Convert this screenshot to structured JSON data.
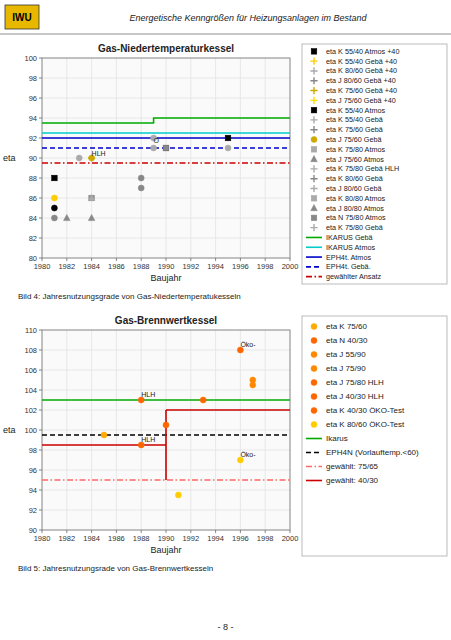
{
  "title": "Energetische Kenngrößen für Heizungsanlagen im Bestand",
  "annotations": [
    "IWU",
    "- 8 -"
  ],
  "chart_data": [
    {
      "type": "scatter",
      "title": "Gas-Niedertemperaturkessel",
      "subtitle": "Bild 4: Jahresnutzungsgrade von Gas-Niedertemperatukesseln",
      "x_label": "Baujahr",
      "y_label": "eta",
      "xlim": [
        1980,
        2000
      ],
      "ylim": [
        80,
        100
      ],
      "xticks": [
        1980,
        1982,
        1984,
        1986,
        1988,
        1990,
        1992,
        1994,
        1996,
        1998,
        2000
      ],
      "yticks": [
        80,
        82,
        84,
        86,
        88,
        90,
        92,
        94,
        96,
        98,
        100
      ],
      "grid": true,
      "legend": "right",
      "series": [
        {
          "name": "eta K 55/40 Atmos +40",
          "type": "scatter",
          "color": "#000000",
          "marker": "square",
          "x": [],
          "values": []
        },
        {
          "name": "eta K 55/40 Gebä +40",
          "type": "scatter",
          "color": "#ffcc00",
          "marker": "plus",
          "x": [],
          "values": []
        },
        {
          "name": "eta K 80/60 Gebä +40",
          "type": "scatter",
          "color": "#aaaaaa",
          "marker": "plus",
          "x": [],
          "values": []
        },
        {
          "name": "eta J 80/60 Gebä +40",
          "type": "scatter",
          "color": "#888888",
          "marker": "plus",
          "x": [],
          "values": []
        },
        {
          "name": "eta K 75/60 Gebä +40",
          "type": "scatter",
          "color": "#ccaa00",
          "marker": "plus",
          "x": [],
          "values": []
        },
        {
          "name": "eta J 75/60 Gebä +40",
          "type": "scatter",
          "color": "#ffdd00",
          "marker": "plus",
          "x": [],
          "values": []
        },
        {
          "name": "eta K 55/40 Atmos",
          "type": "scatter",
          "color": "#000000",
          "marker": "square",
          "x": [],
          "values": []
        },
        {
          "name": "eta K 55/40 Gebä",
          "type": "scatter",
          "color": "#aaaaaa",
          "marker": "plus",
          "x": [],
          "values": []
        },
        {
          "name": "eta K 75/60 Gebä",
          "type": "scatter",
          "color": "#888888",
          "marker": "plus",
          "x": [],
          "values": []
        },
        {
          "name": "eta J 75/60 Gebä",
          "type": "scatter",
          "color": "#ccaa00",
          "marker": "circle",
          "x": [],
          "values": []
        },
        {
          "name": "eta K 75/80 Atmos",
          "type": "scatter",
          "color": "#aaaaaa",
          "marker": "square",
          "x": [],
          "values": []
        },
        {
          "name": "eta J 75/60 Atmos",
          "type": "scatter",
          "color": "#888888",
          "marker": "triangle",
          "x": [],
          "values": []
        },
        {
          "name": "eta K 75/80 Gebä HLH",
          "type": "scatter",
          "color": "#aaaaaa",
          "marker": "plus",
          "x": [],
          "values": []
        },
        {
          "name": "eta K 80/60 Gebä",
          "type": "scatter",
          "color": "#888888",
          "marker": "plus",
          "x": [],
          "values": []
        },
        {
          "name": "eta J 80/60 Gebä",
          "type": "scatter",
          "color": "#aaaaaa",
          "marker": "plus",
          "x": [],
          "values": []
        },
        {
          "name": "eta K 80/80 Atmos",
          "type": "scatter",
          "color": "#aaaaaa",
          "marker": "square",
          "x": [],
          "values": []
        },
        {
          "name": "eta J 80/80 Atmos",
          "type": "scatter",
          "color": "#888888",
          "marker": "triangle",
          "x": [],
          "values": []
        },
        {
          "name": "eta N 75/80 Atmos",
          "type": "scatter",
          "color": "#888888",
          "marker": "square",
          "x": [],
          "values": []
        },
        {
          "name": "eta K 75/80 Gebä",
          "type": "scatter",
          "color": "#aaaaaa",
          "marker": "plus",
          "x": [],
          "values": []
        },
        {
          "name": "IKARUS Gebä",
          "type": "line",
          "color": "#00aa00",
          "line_style": "solid",
          "x": [
            1980,
            1989,
            1989,
            2000
          ],
          "values": [
            93.5,
            93.5,
            94,
            94
          ]
        },
        {
          "name": "IKARUS Atmos",
          "type": "line",
          "color": "#00cccc",
          "line_style": "solid",
          "x": [
            1980,
            1989,
            1989,
            2000
          ],
          "values": [
            92.5,
            92.5,
            92.5,
            92.5
          ]
        },
        {
          "name": "EPH4t. Atmos",
          "type": "line",
          "color": "#0000cc",
          "line_style": "solid",
          "x": [
            1980,
            2000
          ],
          "values": [
            92,
            92
          ]
        },
        {
          "name": "EPH4t. Gebä.",
          "type": "line",
          "color": "#0000cc",
          "line_style": "dashed",
          "x": [
            1980,
            2000
          ],
          "values": [
            91,
            91
          ]
        },
        {
          "name": "gewählter Ansatz",
          "type": "line",
          "color": "#cc0000",
          "line_style": "dashdot",
          "x": [
            1980,
            2000
          ],
          "values": [
            89.5,
            89.5
          ]
        },
        {
          "type": "scatter",
          "color": "#000000",
          "marker": "square",
          "x": [
            1981
          ],
          "values": [
            88
          ]
        },
        {
          "type": "scatter",
          "color": "#ffcc00",
          "marker": "circle",
          "x": [
            1981
          ],
          "values": [
            86
          ]
        },
        {
          "type": "scatter",
          "color": "#000000",
          "marker": "circle",
          "x": [
            1981
          ],
          "values": [
            85
          ]
        },
        {
          "type": "scatter",
          "color": "#888888",
          "marker": "circle",
          "x": [
            1981
          ],
          "values": [
            84
          ]
        },
        {
          "type": "scatter",
          "color": "#888888",
          "marker": "triangle",
          "x": [
            1982
          ],
          "values": [
            84
          ]
        },
        {
          "type": "scatter",
          "color": "#aaaaaa",
          "marker": "circle",
          "x": [
            1983
          ],
          "values": [
            90
          ]
        },
        {
          "type": "scatter",
          "color": "#ccaa00",
          "marker": "plus",
          "x": [
            1984
          ],
          "values": [
            90
          ]
        },
        {
          "type": "scatter",
          "color": "#888888",
          "marker": "square",
          "x": [
            1984
          ],
          "values": [
            86
          ]
        },
        {
          "type": "scatter",
          "color": "#aaaaaa",
          "marker": "triangle",
          "x": [
            1984
          ],
          "values": [
            86
          ]
        },
        {
          "type": "scatter",
          "color": "#888888",
          "marker": "triangle",
          "x": [
            1984
          ],
          "values": [
            84
          ]
        },
        {
          "type": "scatter",
          "color": "#ccaa00",
          "marker": "circle",
          "x": [
            1984
          ],
          "values": [
            90
          ]
        },
        {
          "type": "scatter",
          "color": "#888888",
          "marker": "circle",
          "x": [
            1988
          ],
          "values": [
            88
          ]
        },
        {
          "type": "scatter",
          "color": "#888888",
          "marker": "circle",
          "x": [
            1988
          ],
          "values": [
            87
          ]
        },
        {
          "type": "scatter",
          "color": "#aaaaaa",
          "marker": "circle",
          "x": [
            1989
          ],
          "values": [
            92
          ]
        },
        {
          "type": "scatter",
          "color": "#aaaaaa",
          "marker": "circle",
          "x": [
            1989
          ],
          "values": [
            91
          ]
        },
        {
          "type": "scatter",
          "color": "#000000",
          "marker": "square",
          "x": [
            1990
          ],
          "values": [
            91
          ]
        },
        {
          "type": "scatter",
          "color": "#888888",
          "marker": "square",
          "x": [
            1990
          ],
          "values": [
            91
          ]
        },
        {
          "type": "scatter",
          "color": "#000000",
          "marker": "square",
          "x": [
            1995
          ],
          "values": [
            92
          ]
        },
        {
          "type": "scatter",
          "color": "#aaaaaa",
          "marker": "circle",
          "x": [
            1995
          ],
          "values": [
            91
          ]
        }
      ],
      "annotations": [
        {
          "x": 1984,
          "y": 90.2,
          "text": "HLH"
        },
        {
          "x": 1989,
          "y": 91.5,
          "text": "O"
        }
      ]
    },
    {
      "type": "scatter",
      "title": "Gas-Brennwertkessel",
      "subtitle": "Bild 5: Jahresnutzungsrade von Gas-Brennwertkesseln",
      "x_label": "Baujahr",
      "y_label": "eta",
      "xlim": [
        1980,
        2000
      ],
      "ylim": [
        90,
        110
      ],
      "xticks": [
        1980,
        1982,
        1984,
        1986,
        1988,
        1990,
        1992,
        1994,
        1996,
        1998,
        2000
      ],
      "yticks": [
        90,
        92,
        94,
        96,
        98,
        100,
        102,
        104,
        106,
        108,
        110
      ],
      "grid": true,
      "legend": "right",
      "series": [
        {
          "name": "eta K 75/60",
          "type": "scatter",
          "color": "#ffaa00",
          "marker": "circle",
          "x": [],
          "values": []
        },
        {
          "name": "eta N 40/30",
          "type": "scatter",
          "color": "#ff6600",
          "marker": "circle",
          "x": [],
          "values": []
        },
        {
          "name": "eta J 55/90",
          "type": "scatter",
          "color": "#ff8800",
          "marker": "circle",
          "x": [],
          "values": []
        },
        {
          "name": "eta J 75/90",
          "type": "scatter",
          "color": "#ff8800",
          "marker": "circle",
          "x": [],
          "values": []
        },
        {
          "name": "eta J 75/80 HLH",
          "type": "scatter",
          "color": "#ff6600",
          "marker": "circle",
          "x": [],
          "values": []
        },
        {
          "name": "eta J 40/30 HLH",
          "type": "scatter",
          "color": "#ff6600",
          "marker": "circle",
          "x": [],
          "values": []
        },
        {
          "name": "eta K 40/30 ÖKO-Test",
          "type": "scatter",
          "color": "#ff6600",
          "marker": "circle",
          "x": [],
          "values": []
        },
        {
          "name": "eta K 80/60 ÖKO-Test",
          "type": "scatter",
          "color": "#ffcc00",
          "marker": "circle",
          "x": [],
          "values": []
        },
        {
          "name": "Ikarus",
          "type": "line",
          "color": "#00aa00",
          "line_style": "solid",
          "x": [
            1980,
            1988,
            1988,
            2000
          ],
          "values": [
            103,
            103,
            103,
            103
          ]
        },
        {
          "name": "EPH4N (Vorlauftemp.<60)",
          "type": "line",
          "color": "#000000",
          "line_style": "dashed",
          "x": [
            1980,
            2000
          ],
          "values": [
            99.5,
            99.5
          ]
        },
        {
          "name": "gewählt: 75/65",
          "type": "line",
          "color": "#ff6666",
          "line_style": "dashdot",
          "x": [
            1980,
            2000
          ],
          "values": [
            95,
            95
          ]
        },
        {
          "name": "gewählt: 40/30",
          "type": "line",
          "color": "#cc0000",
          "line_style": "solid",
          "x": [
            1980,
            1990,
            1990,
            1990,
            1990,
            1990,
            1990,
            2000
          ],
          "values": [
            98.5,
            98.5,
            null,
            95,
            102,
            null,
            102,
            102
          ]
        },
        {
          "type": "scatter",
          "color": "#ffaa00",
          "marker": "circle",
          "x": [
            1985
          ],
          "values": [
            99.5
          ]
        },
        {
          "type": "scatter",
          "color": "#ff6600",
          "marker": "circle",
          "x": [
            1988
          ],
          "values": [
            103
          ]
        },
        {
          "type": "scatter",
          "color": "#ff6600",
          "marker": "circle",
          "x": [
            1988
          ],
          "values": [
            98.5
          ]
        },
        {
          "type": "scatter",
          "color": "#ff6600",
          "marker": "circle",
          "x": [
            1990
          ],
          "values": [
            100.5
          ]
        },
        {
          "type": "scatter",
          "color": "#ffcc00",
          "marker": "circle",
          "x": [
            1991
          ],
          "values": [
            93.5
          ]
        },
        {
          "type": "scatter",
          "color": "#ff6600",
          "marker": "circle",
          "x": [
            1993
          ],
          "values": [
            103
          ]
        },
        {
          "type": "scatter",
          "color": "#ff6600",
          "marker": "circle",
          "x": [
            1996
          ],
          "values": [
            108
          ]
        },
        {
          "type": "scatter",
          "color": "#ffcc00",
          "marker": "circle",
          "x": [
            1996
          ],
          "values": [
            97
          ]
        },
        {
          "type": "scatter",
          "color": "#ff8800",
          "marker": "circle",
          "x": [
            1997
          ],
          "values": [
            105
          ]
        },
        {
          "type": "scatter",
          "color": "#ff8800",
          "marker": "circle",
          "x": [
            1997
          ],
          "values": [
            104.5
          ]
        }
      ],
      "annotations": [
        {
          "x": 1988,
          "y": 103.3,
          "text": "HLH"
        },
        {
          "x": 1988,
          "y": 98.8,
          "text": "HLH"
        },
        {
          "x": 1996,
          "y": 108.3,
          "text": "Öko-"
        },
        {
          "x": 1996,
          "y": 97.3,
          "text": "Öko-"
        }
      ]
    }
  ]
}
